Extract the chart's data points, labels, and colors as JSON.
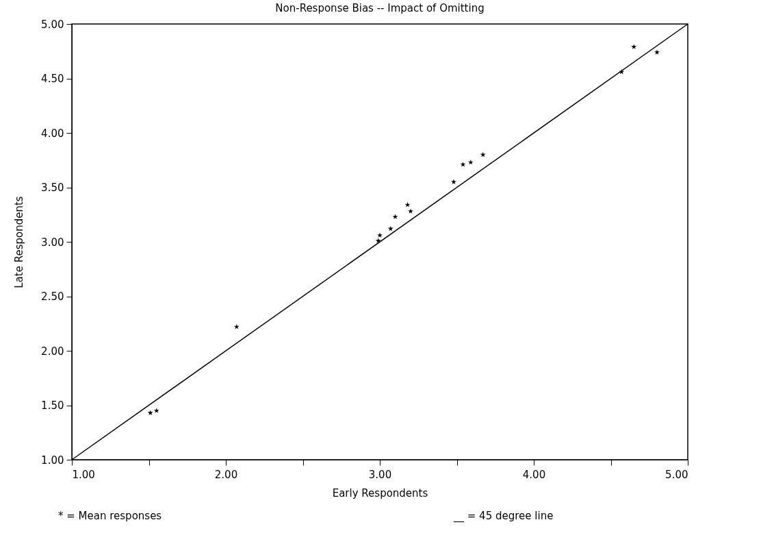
{
  "chart_data": {
    "type": "scatter",
    "title": "Non-Response Bias -- Impact of Omitting",
    "xlabel": "Early Respondents",
    "ylabel": "Late Respondents",
    "annotations": [
      "* = Mean responses",
      "__ = 45 degree line"
    ],
    "marker": "star",
    "grid": false,
    "xlim": [
      1,
      5
    ],
    "ylim": [
      1,
      5
    ],
    "xticks": [
      {
        "value": 1,
        "label": "1.00"
      },
      {
        "value": 1.5,
        "label": null
      },
      {
        "value": 2,
        "label": "2.00"
      },
      {
        "value": 2.5,
        "label": null
      },
      {
        "value": 3,
        "label": "3.00"
      },
      {
        "value": 3.5,
        "label": null
      },
      {
        "value": 4,
        "label": "4.00"
      },
      {
        "value": 4.5,
        "label": null
      },
      {
        "value": 5,
        "label": "5.00"
      }
    ],
    "yticks": [
      {
        "value": 1,
        "label": "1.00"
      },
      {
        "value": 1.5,
        "label": "1.50"
      },
      {
        "value": 2,
        "label": "2.00"
      },
      {
        "value": 2.5,
        "label": "2.50"
      },
      {
        "value": 3,
        "label": "3.00"
      },
      {
        "value": 3.5,
        "label": "3.50"
      },
      {
        "value": 4,
        "label": "4.00"
      },
      {
        "value": 4.5,
        "label": "4.50"
      },
      {
        "value": 5,
        "label": "5.00"
      }
    ],
    "series": [
      {
        "color": "#000000",
        "x": [
          1.51,
          1.55,
          2.07,
          2.99,
          3.0,
          3.07,
          3.1,
          3.18,
          3.2,
          3.48,
          3.54,
          3.59,
          3.67,
          4.57,
          4.65,
          4.8
        ],
        "values": [
          1.43,
          1.45,
          2.22,
          3.01,
          3.06,
          3.12,
          3.23,
          3.34,
          3.28,
          3.55,
          3.71,
          3.73,
          3.8,
          4.56,
          4.79,
          4.74
        ]
      },
      {
        "type": "line",
        "color": "#000000",
        "line_style": "solid",
        "marker": "none",
        "x": [
          1,
          5
        ],
        "values": [
          1,
          5
        ]
      }
    ]
  }
}
